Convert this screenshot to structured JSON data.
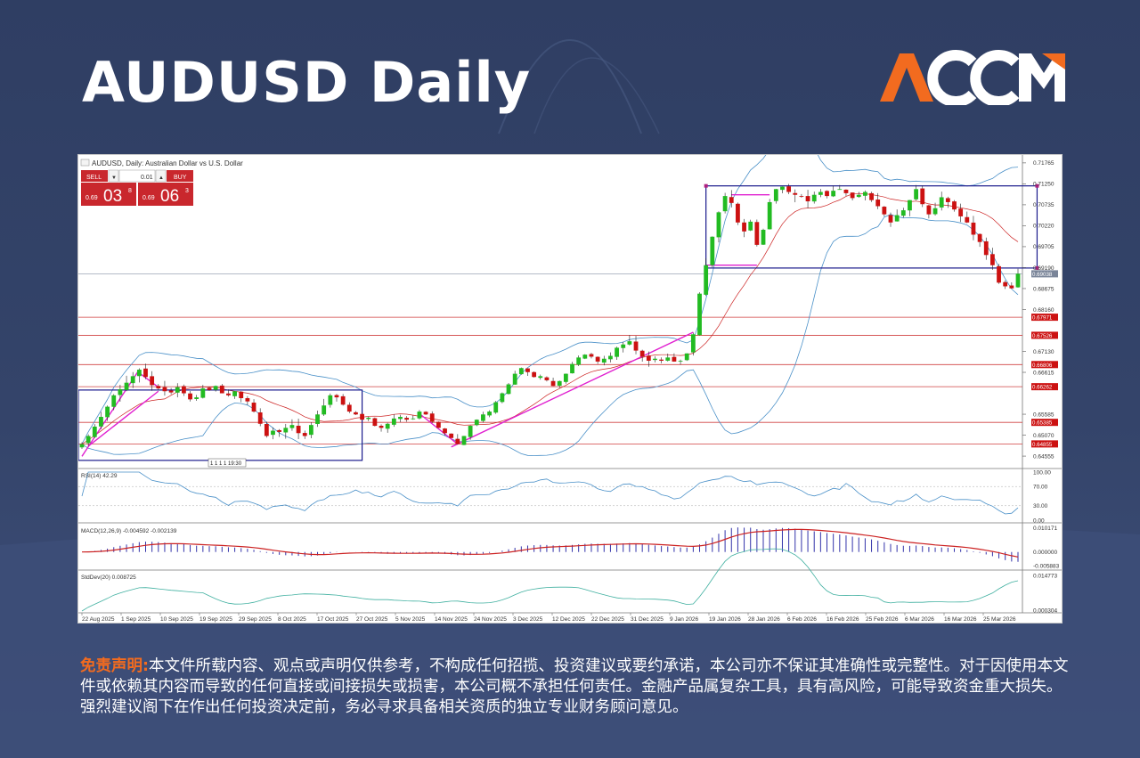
{
  "title": "AUDUSD Daily",
  "logo": "ACCM",
  "colors": {
    "accent": "#f26b1f",
    "background": "#34446a",
    "bull": "#22bb22",
    "bear": "#cc1111",
    "bands": "#4a90c8",
    "level_line": "#d04040",
    "trend": "#e020d0",
    "box": "#1a1a8c"
  },
  "trade_panel": {
    "symbol_line": "AUDUSD, Daily: Australian Dollar vs U.S. Dollar",
    "sell_label": "SELL",
    "buy_label": "BUY",
    "lot": "0.01",
    "sell_prefix": "0.69",
    "sell_big": "03",
    "sell_sup": "8",
    "buy_prefix": "0.69",
    "buy_big": "06",
    "buy_sup": "3",
    "marker": "1 1 1 1 19:30"
  },
  "chart_data": [
    {
      "type": "candlestick",
      "title": "AUDUSD, Daily: Australian Dollar vs U.S. Dollar",
      "y_ticks": [
        "0.71765",
        "0.71250",
        "0.70735",
        "0.70220",
        "0.69705",
        "0.69190",
        "0.68675",
        "0.68160",
        "0.67130",
        "0.66615",
        "0.65585",
        "0.65070",
        "0.64555"
      ],
      "ylim": [
        0.6425,
        0.7185
      ],
      "current_price": "0.69038",
      "horizontal_levels": [
        "0.67971",
        "0.67526",
        "0.66806",
        "0.66262",
        "0.65385",
        "0.64855"
      ],
      "x_labels": [
        "22 Aug 2025",
        "1 Sep 2025",
        "10 Sep 2025",
        "19 Sep 2025",
        "29 Sep 2025",
        "8 Oct 2025",
        "17 Oct 2025",
        "27 Oct 2025",
        "5 Nov 2025",
        "14 Nov 2025",
        "24 Nov 2025",
        "3 Dec 2025",
        "12 Dec 2025",
        "22 Dec 2025",
        "31 Dec 2025",
        "9 Jan 2026",
        "19 Jan 2026",
        "28 Jan 2026",
        "6 Feb 2026",
        "16 Feb 2026",
        "25 Feb 2026",
        "6 Mar 2026",
        "16 Mar 2026",
        "25 Mar 2026"
      ],
      "overlays": [
        "Bollinger Bands",
        "Moving average",
        "Trend lines",
        "Range boxes"
      ],
      "close_path": [
        0.6485,
        0.6505,
        0.6528,
        0.6552,
        0.6577,
        0.6605,
        0.662,
        0.6636,
        0.6652,
        0.6668,
        0.665,
        0.663,
        0.6622,
        0.6615,
        0.6612,
        0.6625,
        0.661,
        0.6595,
        0.66,
        0.6622,
        0.6618,
        0.6628,
        0.661,
        0.6605,
        0.6615,
        0.6598,
        0.659,
        0.6565,
        0.6535,
        0.6505,
        0.6518,
        0.6515,
        0.6525,
        0.6532,
        0.6512,
        0.6505,
        0.6532,
        0.6558,
        0.658,
        0.6605,
        0.66,
        0.6582,
        0.6565,
        0.6558,
        0.6545,
        0.655,
        0.653,
        0.6525,
        0.6535,
        0.6548,
        0.6552,
        0.6545,
        0.6548,
        0.6565,
        0.6558,
        0.654,
        0.6525,
        0.6512,
        0.65,
        0.6485,
        0.6505,
        0.653,
        0.6545,
        0.6558,
        0.6565,
        0.6588,
        0.661,
        0.6632,
        0.6658,
        0.6672,
        0.6662,
        0.665,
        0.6652,
        0.6642,
        0.6628,
        0.664,
        0.6658,
        0.6682,
        0.6698,
        0.6705,
        0.67,
        0.6688,
        0.6695,
        0.6702,
        0.6722,
        0.673,
        0.6738,
        0.6715,
        0.67,
        0.669,
        0.6695,
        0.669,
        0.6698,
        0.6688,
        0.669,
        0.6708,
        0.6755,
        0.6855,
        0.6925,
        0.6995,
        0.7055,
        0.7095,
        0.7078,
        0.703,
        0.7008,
        0.7032,
        0.6975,
        0.7012,
        0.708,
        0.7112,
        0.7118,
        0.7105,
        0.7098,
        0.7095,
        0.7082,
        0.7098,
        0.7105,
        0.7095,
        0.7108,
        0.7112,
        0.7102,
        0.709,
        0.7098,
        0.7105,
        0.7085,
        0.707,
        0.705,
        0.703,
        0.7048,
        0.706,
        0.7085,
        0.7112,
        0.7075,
        0.705,
        0.7065,
        0.7092,
        0.708,
        0.7062,
        0.7045,
        0.703,
        0.7,
        0.6982,
        0.695,
        0.6925,
        0.6882,
        0.6873,
        0.6868,
        0.6904
      ]
    },
    {
      "type": "line",
      "title": "RSI(14) 42.29",
      "y_ticks": [
        "100.00",
        "70.00",
        "30.00",
        "0.00"
      ],
      "ylim": [
        0,
        100
      ]
    },
    {
      "type": "bar",
      "title": "MACD(12,26,9) -0.004592 -0.002139",
      "y_ticks": [
        "0.010171",
        "0.000000",
        "-0.005883"
      ],
      "ylim": [
        -0.0065,
        0.0108
      ]
    },
    {
      "type": "line",
      "title": "StdDev(20) 0.008725",
      "y_ticks": [
        "0.014773",
        "0.000304"
      ],
      "ylim": [
        0,
        0.0155
      ]
    }
  ],
  "disclaimer": {
    "label": "免责声明:",
    "text": "本文件所载内容、观点或声明仅供参考，不构成任何招揽、投资建议或要约承诺，本公司亦不保证其准确性或完整性。对于因使用本文件或依赖其内容而导致的任何直接或间接损失或损害，本公司概不承担任何责任。金融产品属复杂工具，具有高风险，可能导致资金重大损失。强烈建议阁下在作出任何投资决定前，务必寻求具备相关资质的独立专业财务顾问意见。"
  }
}
